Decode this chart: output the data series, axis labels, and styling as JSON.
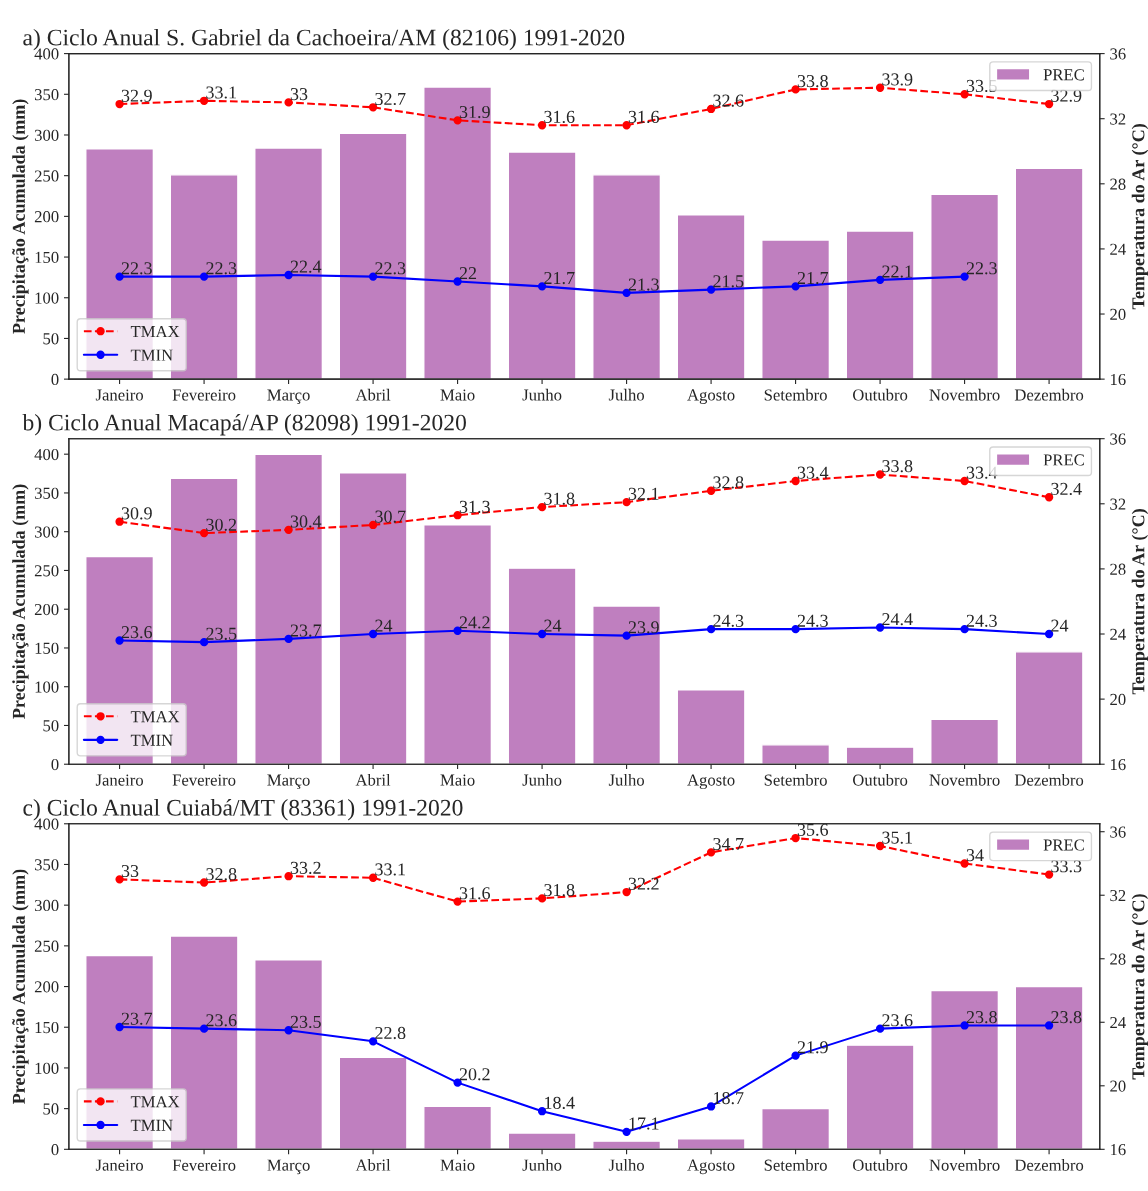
{
  "chart_data": [
    {
      "type": "bar",
      "title": "a) Ciclo Anual S. Gabriel da Cachoeira/AM (82106) 1991-2020",
      "ylabel": "Precipitação Acumulada (mm)",
      "y2label": "Temperatura do Ar (°C)",
      "categories": [
        "Janeiro",
        "Fevereiro",
        "Março",
        "Abril",
        "Maio",
        "Junho",
        "Julho",
        "Agosto",
        "Setembro",
        "Outubro",
        "Novembro",
        "Dezembro"
      ],
      "series": [
        {
          "name": "PREC",
          "color": "#bf7fbf",
          "values": [
            283,
            251,
            284,
            302,
            359,
            279,
            251,
            202,
            171,
            182,
            227,
            259
          ]
        },
        {
          "name": "TMAX",
          "type": "line",
          "axis": "y2",
          "color": "#ff0000",
          "line_style": "dashed",
          "values": [
            32.9,
            33.1,
            33,
            32.7,
            31.9,
            31.6,
            31.6,
            32.6,
            33.8,
            33.9,
            33.5,
            32.9
          ],
          "value_labels": [
            "32.9",
            "33.1",
            "33",
            "32.7",
            "31.9",
            "31.6",
            "31.6",
            "32.6",
            "33.8",
            "33.9",
            "33.5",
            "32.9"
          ]
        },
        {
          "name": "TMIN",
          "type": "line",
          "axis": "y2",
          "color": "#0000ff",
          "line_style": "solid",
          "values": [
            22.3,
            22.3,
            22.4,
            22.3,
            22,
            21.7,
            21.3,
            21.5,
            21.7,
            22.1,
            22.3,
            null
          ],
          "value_labels": [
            "22.3",
            "22.3",
            "22.4",
            "22.3",
            "22",
            "21.7",
            "21.3",
            "21.5",
            "21.7",
            "22.1",
            "22.3",
            null
          ]
        }
      ],
      "ylim": [
        0,
        400
      ],
      "yticks": [
        0,
        50,
        100,
        150,
        200,
        250,
        300,
        350,
        400
      ],
      "y2lim": [
        16,
        36
      ],
      "y2ticks": [
        16,
        20,
        24,
        28,
        32,
        36
      ],
      "marker": "circle",
      "legend": "top right",
      "grid": false
    },
    {
      "type": "bar",
      "title": "b) Ciclo Anual Macapá/AP (82098) 1991-2020",
      "ylabel": "Precipitação Acumulada (mm)",
      "y2label": "Temperatura do Ar (°C)",
      "categories": [
        "Janeiro",
        "Fevereiro",
        "Março",
        "Abril",
        "Maio",
        "Junho",
        "Julho",
        "Agosto",
        "Setembro",
        "Outubro",
        "Novembro",
        "Dezembro"
      ],
      "series": [
        {
          "name": "PREC",
          "color": "#bf7fbf",
          "values": [
            268,
            369,
            400,
            376,
            309,
            253,
            204,
            96,
            25,
            22,
            58,
            145
          ]
        },
        {
          "name": "TMAX",
          "type": "line",
          "axis": "y2",
          "color": "#ff0000",
          "line_style": "dashed",
          "values": [
            30.9,
            30.2,
            30.4,
            30.7,
            31.3,
            31.8,
            32.1,
            32.8,
            33.4,
            33.8,
            33.4,
            32.4
          ],
          "value_labels": [
            "30.9",
            "30.2",
            "30.4",
            "30.7",
            "31.3",
            "31.8",
            "32.1",
            "32.8",
            "33.4",
            "33.8",
            "33.4",
            "32.4"
          ]
        },
        {
          "name": "TMIN",
          "type": "line",
          "axis": "y2",
          "color": "#0000ff",
          "line_style": "solid",
          "values": [
            23.6,
            23.5,
            23.7,
            24,
            24.2,
            24,
            23.9,
            24.3,
            24.3,
            24.4,
            24.3,
            24
          ],
          "value_labels": [
            "23.6",
            "23.5",
            "23.7",
            "24",
            "24.2",
            "24",
            "23.9",
            "24.3",
            "24.3",
            "24.4",
            "24.3",
            "24"
          ]
        }
      ],
      "ylim": [
        0,
        420
      ],
      "yticks": [
        0,
        50,
        100,
        150,
        200,
        250,
        300,
        350,
        400
      ],
      "y2lim": [
        16,
        36
      ],
      "y2ticks": [
        16,
        20,
        24,
        28,
        32,
        36
      ],
      "marker": "circle",
      "legend": "top right",
      "grid": false
    },
    {
      "type": "bar",
      "title": "c) Ciclo Anual Cuiabá/MT (83361) 1991-2020",
      "ylabel": "Precipitação Acumulada (mm)",
      "y2label": "Temperatura do Ar (°C)",
      "categories": [
        "Janeiro",
        "Fevereiro",
        "Março",
        "Abril",
        "Maio",
        "Junho",
        "Julho",
        "Agosto",
        "Setembro",
        "Outubro",
        "Novembro",
        "Dezembro"
      ],
      "series": [
        {
          "name": "PREC",
          "color": "#bf7fbf",
          "values": [
            238,
            262,
            233,
            113,
            53,
            20,
            10,
            13,
            50,
            128,
            195,
            200
          ]
        },
        {
          "name": "TMAX",
          "type": "line",
          "axis": "y2",
          "color": "#ff0000",
          "line_style": "dashed",
          "values": [
            33,
            32.8,
            33.2,
            33.1,
            31.6,
            31.8,
            32.2,
            34.7,
            35.6,
            35.1,
            34,
            33.3
          ],
          "value_labels": [
            "33",
            "32.8",
            "33.2",
            "33.1",
            "31.6",
            "31.8",
            "32.2",
            "34.7",
            "35.6",
            "35.1",
            "34",
            "33.3"
          ]
        },
        {
          "name": "TMIN",
          "type": "line",
          "axis": "y2",
          "color": "#0000ff",
          "line_style": "solid",
          "values": [
            23.7,
            23.6,
            23.5,
            22.8,
            20.2,
            18.4,
            17.1,
            18.7,
            21.9,
            23.6,
            23.8,
            23.8
          ],
          "value_labels": [
            "23.7",
            "23.6",
            "23.5",
            "22.8",
            "20.2",
            "18.4",
            "17.1",
            "18.7",
            "21.9",
            "23.6",
            "23.8",
            "23.8"
          ]
        }
      ],
      "ylim": [
        0,
        400
      ],
      "yticks": [
        0,
        50,
        100,
        150,
        200,
        250,
        300,
        350,
        400
      ],
      "y2lim": [
        16,
        36.5
      ],
      "y2ticks": [
        16,
        20,
        24,
        28,
        32,
        36
      ],
      "marker": "circle",
      "legend": "top right",
      "grid": false
    }
  ]
}
